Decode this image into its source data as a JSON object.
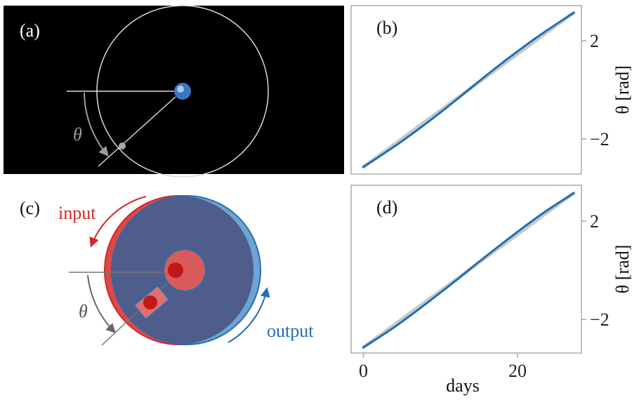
{
  "diagram_a": {
    "label": "(a)",
    "angle_label": "θ"
  },
  "diagram_c": {
    "label": "(c)",
    "input_label": "input",
    "output_label": "output",
    "angle_label": "θ"
  },
  "chart_data": [
    {
      "type": "line",
      "label": "(b)",
      "ylabel": "θ [rad]",
      "x": [
        0,
        2.1,
        4.2,
        6.3,
        8.4,
        10.5,
        12.6,
        14.7,
        16.8,
        18.9,
        21,
        23.1,
        25.2,
        27.3
      ],
      "series": [
        {
          "color": "#c8c8c8",
          "values": [
            -3.14,
            -2.66,
            -2.18,
            -1.69,
            -1.21,
            -0.73,
            -0.24,
            0.24,
            0.73,
            1.21,
            1.69,
            2.18,
            2.66,
            3.14
          ]
        },
        {
          "color": "#1f6fb4",
          "values": [
            -3.14,
            -2.71,
            -2.27,
            -1.8,
            -1.31,
            -0.8,
            -0.27,
            0.27,
            0.8,
            1.31,
            1.8,
            2.27,
            2.71,
            3.14
          ]
        }
      ],
      "xlim": [
        -1.6,
        28.3
      ],
      "ylim": [
        -3.43,
        3.43
      ],
      "yticks": [
        {
          "value": -2,
          "label": "−2"
        },
        2
      ]
    },
    {
      "type": "line",
      "label": "(d)",
      "ylabel": "θ [rad]",
      "xlabel": "days",
      "x": [
        0,
        2.1,
        4.2,
        6.3,
        8.4,
        10.5,
        12.6,
        14.7,
        16.8,
        18.9,
        21,
        23.1,
        25.2,
        27.3
      ],
      "series": [
        {
          "color": "#c8c8c8",
          "values": [
            -3.14,
            -2.66,
            -2.18,
            -1.69,
            -1.21,
            -0.73,
            -0.24,
            0.24,
            0.73,
            1.21,
            1.69,
            2.18,
            2.66,
            3.14
          ]
        },
        {
          "color": "#1f6fb4",
          "values": [
            -3.14,
            -2.72,
            -2.28,
            -1.8,
            -1.3,
            -0.79,
            -0.27,
            0.27,
            0.79,
            1.3,
            1.8,
            2.28,
            2.72,
            3.14
          ]
        }
      ],
      "xlim": [
        -1.6,
        28.3
      ],
      "ylim": [
        -3.37,
        3.46
      ],
      "xticks": [
        0,
        20
      ],
      "yticks": [
        {
          "value": -2,
          "label": "−2"
        },
        2
      ]
    }
  ]
}
